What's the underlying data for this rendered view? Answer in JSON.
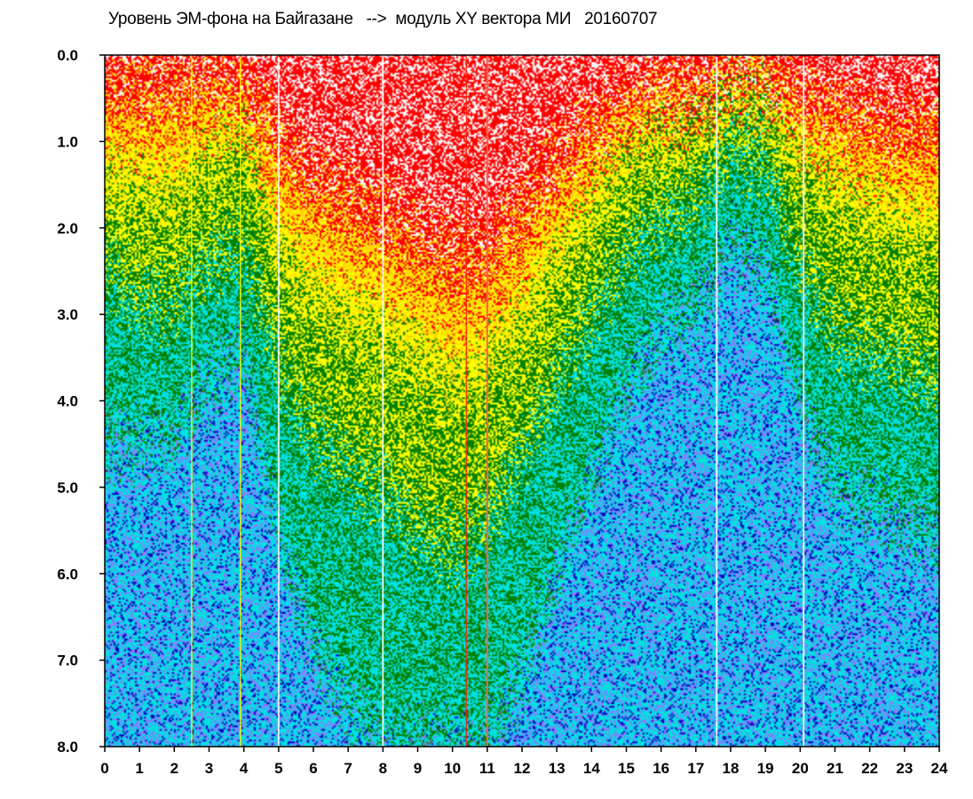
{
  "chart_data": {
    "type": "heatmap",
    "title": "Уровень ЭМ-фона на Байгазане   -->  модуль XY вектора МИ   20160707",
    "xlabel": "",
    "ylabel": "",
    "x_ticks": [
      "0",
      "1",
      "2",
      "3",
      "4",
      "5",
      "6",
      "7",
      "8",
      "9",
      "10",
      "11",
      "12",
      "13",
      "14",
      "15",
      "16",
      "17",
      "18",
      "19",
      "20",
      "21",
      "22",
      "23",
      "24"
    ],
    "y_ticks": [
      "0.0",
      "1.0",
      "2.0",
      "3.0",
      "4.0",
      "5.0",
      "6.0",
      "7.0",
      "8.0"
    ],
    "xlim": [
      0,
      24
    ],
    "ylim": [
      0,
      8
    ],
    "y_inverted": true,
    "grid": false,
    "colorscale": [
      "#ff0000",
      "#ffd700",
      "#ffff00",
      "#008000",
      "#00e0e0",
      "#8080ff",
      "#0000c0"
    ],
    "hour_profile": [
      {
        "hour": 0,
        "red": 0.3,
        "yellow": 1.5,
        "green": 2.5,
        "cyan": 4.5
      },
      {
        "hour": 1,
        "red": 0.3,
        "yellow": 1.6,
        "green": 2.8,
        "cyan": 4.5
      },
      {
        "hour": 2,
        "red": 0.3,
        "yellow": 1.6,
        "green": 2.9,
        "cyan": 4.4
      },
      {
        "hour": 3,
        "red": 0.3,
        "yellow": 1.2,
        "green": 2.4,
        "cyan": 3.8
      },
      {
        "hour": 4,
        "red": 0.4,
        "yellow": 1.0,
        "green": 2.2,
        "cyan": 3.4
      },
      {
        "hour": 5,
        "red": 0.9,
        "yellow": 2.2,
        "green": 3.6,
        "cyan": 5.6
      },
      {
        "hour": 6,
        "red": 1.4,
        "yellow": 2.8,
        "green": 4.4,
        "cyan": 6.8
      },
      {
        "hour": 7,
        "red": 1.6,
        "yellow": 3.0,
        "green": 4.8,
        "cyan": 7.6
      },
      {
        "hour": 8,
        "red": 1.8,
        "yellow": 3.2,
        "green": 5.0,
        "cyan": 8.0
      },
      {
        "hour": 9,
        "red": 2.0,
        "yellow": 3.5,
        "green": 5.5,
        "cyan": 8.0
      },
      {
        "hour": 10,
        "red": 2.3,
        "yellow": 3.8,
        "green": 5.7,
        "cyan": 8.0
      },
      {
        "hour": 11,
        "red": 2.2,
        "yellow": 3.6,
        "green": 5.4,
        "cyan": 8.0
      },
      {
        "hour": 12,
        "red": 1.7,
        "yellow": 3.1,
        "green": 4.6,
        "cyan": 7.2
      },
      {
        "hour": 13,
        "red": 1.2,
        "yellow": 2.4,
        "green": 3.8,
        "cyan": 6.0
      },
      {
        "hour": 14,
        "red": 0.8,
        "yellow": 1.8,
        "green": 3.0,
        "cyan": 4.9
      },
      {
        "hour": 15,
        "red": 0.5,
        "yellow": 1.2,
        "green": 2.3,
        "cyan": 3.8
      },
      {
        "hour": 16,
        "red": 0.4,
        "yellow": 1.0,
        "green": 1.9,
        "cyan": 3.2
      },
      {
        "hour": 17,
        "red": 0.4,
        "yellow": 0.9,
        "green": 1.7,
        "cyan": 2.9
      },
      {
        "hour": 18,
        "red": 0.2,
        "yellow": 0.5,
        "green": 1.1,
        "cyan": 2.2
      },
      {
        "hour": 19,
        "red": 0.2,
        "yellow": 0.6,
        "green": 1.2,
        "cyan": 2.4
      },
      {
        "hour": 20,
        "red": 0.5,
        "yellow": 1.2,
        "green": 2.4,
        "cyan": 4.0
      },
      {
        "hour": 21,
        "red": 0.6,
        "yellow": 1.6,
        "green": 3.2,
        "cyan": 5.0
      },
      {
        "hour": 22,
        "red": 0.7,
        "yellow": 1.8,
        "green": 3.4,
        "cyan": 5.2
      },
      {
        "hour": 23,
        "red": 0.8,
        "yellow": 2.0,
        "green": 3.6,
        "cyan": 5.4
      },
      {
        "hour": 24,
        "red": 0.8,
        "yellow": 2.1,
        "green": 3.8,
        "cyan": 5.6
      }
    ],
    "vertical_streaks": [
      {
        "hour": 8.0,
        "color": "#ffffff"
      },
      {
        "hour": 11.0,
        "color": "#ffffff"
      },
      {
        "hour": 11.0,
        "color": "#ff2000"
      },
      {
        "hour": 10.4,
        "color": "#ff2000"
      },
      {
        "hour": 5.0,
        "color": "#ffffff"
      },
      {
        "hour": 17.6,
        "color": "#ffffff"
      },
      {
        "hour": 20.1,
        "color": "#ffffff"
      },
      {
        "hour": 2.5,
        "color": "#ffff00"
      },
      {
        "hour": 3.9,
        "color": "#ffff00"
      }
    ]
  }
}
